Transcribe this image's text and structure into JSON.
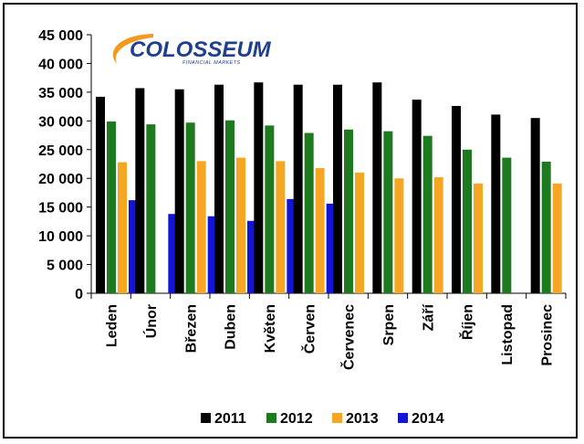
{
  "logo": {
    "name": "COLOSSEUM",
    "tagline": "FINANCIAL MARKETS"
  },
  "chart_data": {
    "type": "bar",
    "title": "",
    "xlabel": "",
    "ylabel": "",
    "ylim": [
      0,
      45000
    ],
    "yticks": [
      0,
      5000,
      10000,
      15000,
      20000,
      25000,
      30000,
      35000,
      40000,
      45000
    ],
    "ytick_labels": [
      "0",
      "5 000",
      "10 000",
      "15 000",
      "20 000",
      "25 000",
      "30 000",
      "35 000",
      "40 000",
      "45 000"
    ],
    "grid": false,
    "legend_position": "bottom-right",
    "categories": [
      "Leden",
      "Únor",
      "Březen",
      "Duben",
      "Květen",
      "Červen",
      "Červenec",
      "Srpen",
      "Září",
      "Říjen",
      "Listopad",
      "Prosinec"
    ],
    "series": [
      {
        "name": "2011",
        "color": "#000000",
        "values": [
          34200,
          35700,
          35500,
          36300,
          36700,
          36300,
          36300,
          36700,
          33700,
          32600,
          31100,
          30500
        ]
      },
      {
        "name": "2012",
        "color": "#1e7a1e",
        "values": [
          29900,
          29400,
          29700,
          30100,
          29200,
          27900,
          28500,
          28200,
          27400,
          25000,
          23600,
          22900
        ]
      },
      {
        "name": "2013",
        "color": "#f5a623",
        "values": [
          22800,
          null,
          23000,
          23600,
          23000,
          21800,
          21000,
          20000,
          20200,
          19100,
          null,
          19100
        ]
      },
      {
        "name": "2014",
        "color": "#1414d6",
        "values": [
          16200,
          13800,
          13400,
          12600,
          16400,
          15600,
          null,
          null,
          null,
          null,
          null,
          null
        ]
      }
    ]
  }
}
